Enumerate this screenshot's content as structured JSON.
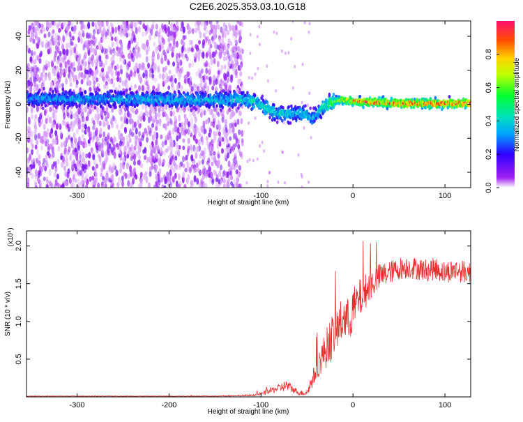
{
  "chart_data": [
    {
      "type": "heatmap",
      "title": "C2E6.2025.353.03.10.G18",
      "xlabel": "Height of straight line (km)",
      "ylabel": "Frequency (Hz)",
      "xlim": [
        -355,
        128
      ],
      "ylim": [
        -49,
        49
      ],
      "x_ticks": [
        -300,
        -200,
        -100,
        0,
        100
      ],
      "y_ticks": [
        -40,
        -20,
        0,
        20,
        40
      ],
      "colorbar": {
        "label": "Normalized spectral amplitude",
        "range": [
          0,
          1
        ],
        "ticks": [
          0.0,
          0.2,
          0.4,
          0.6,
          0.8
        ]
      },
      "ridge": [
        {
          "x": -355,
          "f": 3.5,
          "amp": 0.35
        },
        {
          "x": -250,
          "f": 3.0,
          "amp": 0.4
        },
        {
          "x": -150,
          "f": 2.5,
          "amp": 0.42
        },
        {
          "x": -125,
          "f": 3.0,
          "amp": 0.45
        },
        {
          "x": -110,
          "f": 2.0,
          "amp": 0.48
        },
        {
          "x": -95,
          "f": -2.0,
          "amp": 0.5
        },
        {
          "x": -85,
          "f": -5.0,
          "amp": 0.45
        },
        {
          "x": -70,
          "f": -6.0,
          "amp": 0.45
        },
        {
          "x": -55,
          "f": -5.0,
          "amp": 0.45
        },
        {
          "x": -45,
          "f": -8.0,
          "amp": 0.4
        },
        {
          "x": -35,
          "f": -3.0,
          "amp": 0.5
        },
        {
          "x": -25,
          "f": 0.5,
          "amp": 0.6
        },
        {
          "x": -15,
          "f": 2.5,
          "amp": 0.7
        },
        {
          "x": 0,
          "f": 2.0,
          "amp": 0.85
        },
        {
          "x": 20,
          "f": 1.0,
          "amp": 0.95
        },
        {
          "x": 60,
          "f": 0.5,
          "amp": 0.98
        },
        {
          "x": 128,
          "f": 0.5,
          "amp": 0.98
        }
      ],
      "noise_extent_x": [
        -355,
        -120
      ]
    },
    {
      "type": "line",
      "xlabel": "Height of straight line (km)",
      "ylabel": "SNR (10 * v/v)",
      "y_multiplier": "(x10⁴)",
      "xlim": [
        -355,
        128
      ],
      "ylim": [
        0,
        2.2
      ],
      "x_ticks": [
        -300,
        -200,
        -100,
        0,
        100
      ],
      "y_ticks": [
        0.5,
        1.0,
        1.5,
        2.0
      ],
      "color": "#e83030",
      "series": [
        {
          "x": [
            -355,
            -300,
            -250,
            -200,
            -150,
            -110,
            -100,
            -90,
            -80,
            -72,
            -65,
            -58,
            -50,
            -45,
            -40,
            -35,
            -30,
            -25,
            -20,
            -15,
            -10,
            -5,
            0,
            10,
            20,
            30,
            40,
            50,
            60,
            70,
            80,
            90,
            100,
            110,
            120,
            128
          ],
          "y": [
            0.01,
            0.01,
            0.01,
            0.01,
            0.01,
            0.02,
            0.04,
            0.08,
            0.12,
            0.15,
            0.1,
            0.05,
            0.06,
            0.2,
            0.35,
            0.5,
            0.62,
            0.75,
            0.85,
            0.95,
            1.05,
            1.0,
            1.15,
            1.35,
            1.5,
            1.6,
            1.65,
            1.7,
            1.72,
            1.7,
            1.68,
            1.7,
            1.65,
            1.68,
            1.66,
            1.65
          ],
          "noise": [
            0.003,
            0.003,
            0.003,
            0.003,
            0.004,
            0.01,
            0.02,
            0.04,
            0.05,
            0.08,
            0.05,
            0.03,
            0.05,
            0.1,
            0.15,
            0.2,
            0.25,
            0.3,
            0.3,
            0.3,
            0.3,
            0.3,
            0.3,
            0.25,
            0.2,
            0.18,
            0.15,
            0.15,
            0.15,
            0.15,
            0.15,
            0.15,
            0.15,
            0.15,
            0.15,
            0.15
          ]
        }
      ]
    }
  ]
}
